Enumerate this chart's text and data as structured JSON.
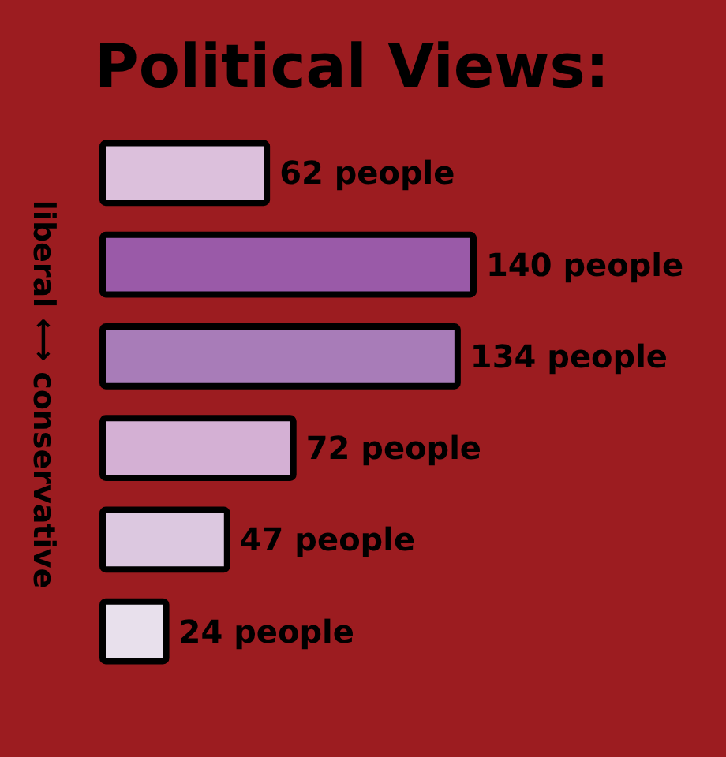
{
  "chart_data": {
    "type": "bar",
    "orientation": "horizontal",
    "title": "Political Views:",
    "ylabel": "liberal ⟷ conservative",
    "categories": [
      null,
      null,
      null,
      null,
      null,
      null
    ],
    "values": [
      62,
      140,
      134,
      72,
      47,
      24
    ],
    "colors": [
      "#dcc0dc",
      "#9a5aa8",
      "#a87cb8",
      "#d4b0d4",
      "#dcc8e0",
      "#e8e0ec"
    ],
    "value_labels": [
      "62 people",
      "140 people",
      "134 people",
      "72 people",
      "47 people",
      "24 people"
    ]
  }
}
